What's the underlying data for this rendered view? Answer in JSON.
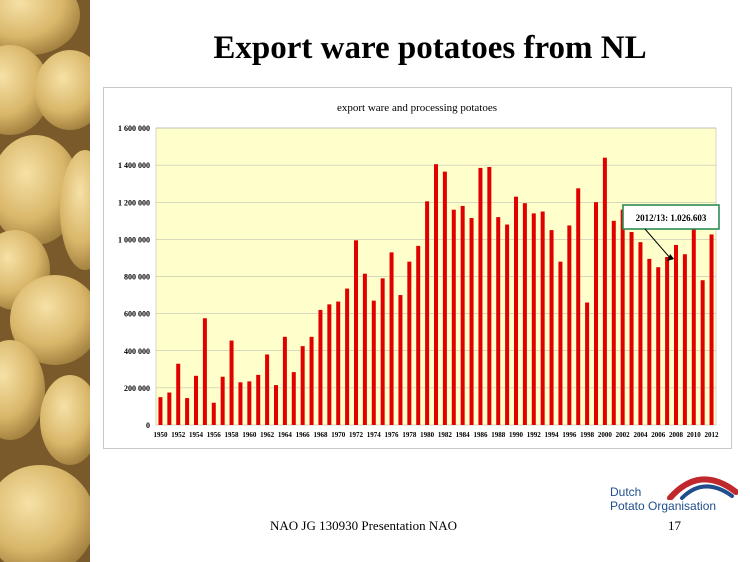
{
  "slide": {
    "title": "Export ware potatoes from NL",
    "footer": "NAO JG 130930 Presentation NAO",
    "page_number": "17",
    "logo_line1": "Dutch",
    "logo_line2": "Potato Organisation"
  },
  "colors": {
    "bar": "#e00000",
    "plot_bg": "#ffffcc",
    "callout_border": "#2e8b57",
    "logo_blue": "#1f4e8c",
    "logo_red": "#c0282d"
  },
  "chart_data": {
    "type": "bar",
    "title": "export ware and processing potatoes",
    "xlabel": "",
    "ylabel": "",
    "ylim": [
      0,
      1600000
    ],
    "yticks": [
      0,
      200000,
      400000,
      600000,
      800000,
      1000000,
      1200000,
      1400000,
      1600000
    ],
    "ytick_labels": [
      "0",
      "200 000",
      "400 000",
      "600 000",
      "800 000",
      "1 000 000",
      "1 200 000",
      "1 400 000",
      "1 600 000"
    ],
    "grid": true,
    "legend": "none",
    "categories": [
      "1950",
      "1951",
      "1952",
      "1953",
      "1954",
      "1955",
      "1956",
      "1957",
      "1958",
      "1959",
      "1960",
      "1961",
      "1962",
      "1963",
      "1964",
      "1965",
      "1966",
      "1967",
      "1968",
      "1969",
      "1970",
      "1971",
      "1972",
      "1973",
      "1974",
      "1975",
      "1976",
      "1977",
      "1978",
      "1979",
      "1980",
      "1981",
      "1982",
      "1983",
      "1984",
      "1985",
      "1986",
      "1987",
      "1988",
      "1989",
      "1990",
      "1991",
      "1992",
      "1993",
      "1994",
      "1995",
      "1996",
      "1997",
      "1998",
      "1999",
      "2000",
      "2001",
      "2002",
      "2003",
      "2004",
      "2005",
      "2006",
      "2007",
      "2008",
      "2009",
      "2010",
      "2011",
      "2012"
    ],
    "xtick_labels": [
      "1950",
      "1952",
      "1954",
      "1956",
      "1958",
      "1960",
      "1962",
      "1964",
      "1966",
      "1968",
      "1970",
      "1972",
      "1974",
      "1976",
      "1978",
      "1980",
      "1982",
      "1984",
      "1986",
      "1988",
      "1990",
      "1992",
      "1994",
      "1996",
      "1998",
      "2000",
      "2002",
      "2004",
      "2006",
      "2008",
      "2010",
      "2012"
    ],
    "values": [
      150000,
      175000,
      330000,
      145000,
      265000,
      575000,
      120000,
      260000,
      455000,
      230000,
      235000,
      270000,
      380000,
      215000,
      475000,
      285000,
      425000,
      475000,
      620000,
      650000,
      665000,
      735000,
      995000,
      815000,
      670000,
      790000,
      930000,
      700000,
      880000,
      965000,
      1205000,
      1405000,
      1365000,
      1160000,
      1180000,
      1115000,
      1385000,
      1390000,
      1120000,
      1080000,
      1230000,
      1195000,
      1140000,
      1150000,
      1050000,
      880000,
      1075000,
      1275000,
      660000,
      1200000,
      1440000,
      1100000,
      1160000,
      1040000,
      985000,
      895000,
      850000,
      905000,
      970000,
      920000,
      1060000,
      780000,
      1026603
    ],
    "annotation": {
      "text": "2012/13: 1.026.603",
      "target_index": 57
    }
  }
}
